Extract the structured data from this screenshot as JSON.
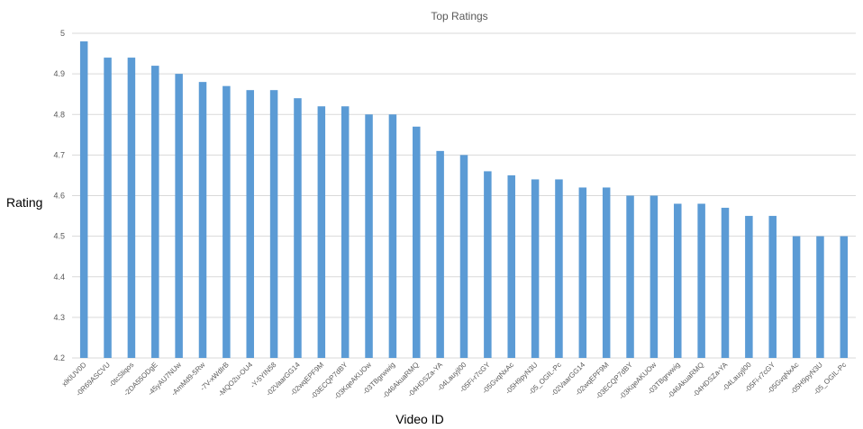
{
  "chart_data": {
    "type": "bar",
    "title": "Top Ratings",
    "xlabel": "Video ID",
    "ylabel": "Rating",
    "ylim": [
      4.2,
      5
    ],
    "yticks": [
      4.2,
      4.3,
      4.4,
      4.5,
      4.6,
      4.7,
      4.8,
      4.9,
      5
    ],
    "grid": true,
    "legend": "none",
    "color": "#5b9bd5",
    "categories": [
      "xlKlUV0D",
      "-0R69ASCVU",
      "-0tcSliqos",
      "-2DA55ODgE",
      "-45yAU7NUw",
      "-AmMd9-5Rw",
      "-7V-xWdIrB",
      "-MQO2u-OU4",
      "-Y-5YIN58",
      "-02VaarGG14",
      "-02wqEPF9M",
      "-03ECQP7dBY",
      "-03KqeAKUOw",
      "-03TBgrwwig",
      "-046AkuaRMQ",
      "-04HDSZa-YA",
      "-04Lauyjl00",
      "-05Fi-r7cGY",
      "-05GvqNxAc",
      "-05H9pyN3U",
      "-05_OGIL-Pc",
      "-02VaarGG14",
      "-02wqEPF9M",
      "-03ECQP7dBY",
      "-03KqeAKUOw",
      "-03TBgrwwig",
      "-046AkuaRMQ",
      "-04HDSZa-YA",
      "-04Lauyjl00",
      "-05Fi-r7cGY",
      "-05GvqNxAc",
      "-05H9pyN3U",
      "-05_OGIL-Pc"
    ],
    "values": [
      4.98,
      4.94,
      4.94,
      4.92,
      4.9,
      4.88,
      4.87,
      4.86,
      4.86,
      4.84,
      4.82,
      4.82,
      4.8,
      4.8,
      4.77,
      4.71,
      4.7,
      4.66,
      4.65,
      4.64,
      4.64,
      4.62,
      4.62,
      4.6,
      4.6,
      4.58,
      4.58,
      4.57,
      4.55,
      4.55,
      4.5,
      4.5,
      4.5
    ]
  }
}
